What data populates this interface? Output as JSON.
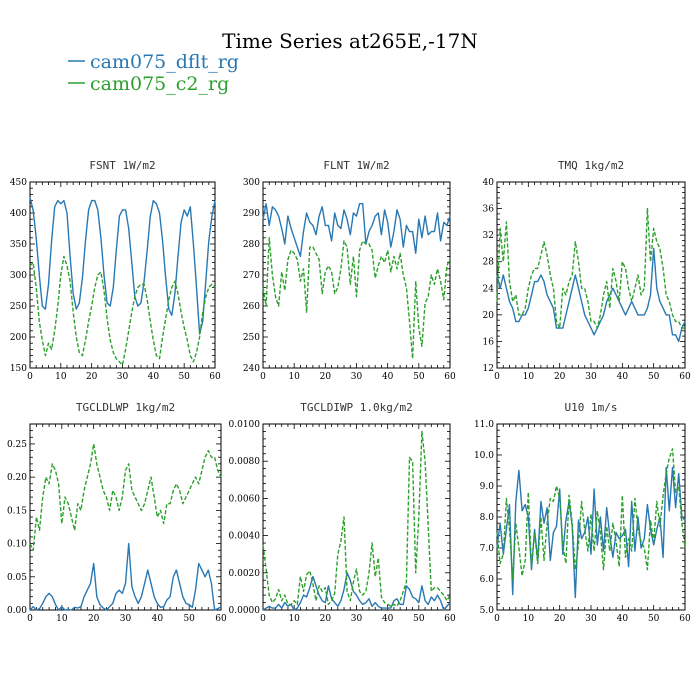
{
  "figure_title": "Time Series at265E,-17N",
  "legend": [
    {
      "label": "cam075_dflt_rg",
      "color": "#2878b4",
      "dash": "solid"
    },
    {
      "label": "cam075_c2_rg",
      "color": "#2ca02c",
      "dash": "dashed"
    }
  ],
  "chart_data": [
    {
      "type": "line",
      "title": "FSNT   1W/m2",
      "xlim": [
        0,
        60
      ],
      "ylim": [
        150,
        450
      ],
      "xticks": [
        0,
        10,
        20,
        30,
        40,
        50,
        60
      ],
      "yticks": [
        150,
        200,
        250,
        300,
        350,
        400,
        450
      ],
      "ytick_labels": [
        "150",
        "200",
        "250",
        "300",
        "350",
        "400",
        "450"
      ],
      "series": [
        {
          "name": "cam075_dflt_rg",
          "color": "#2878b4",
          "dash": "solid",
          "values": [
            425,
            405,
            360,
            300,
            250,
            245,
            285,
            355,
            410,
            420,
            415,
            420,
            400,
            330,
            270,
            245,
            255,
            295,
            355,
            405,
            420,
            420,
            405,
            360,
            300,
            255,
            250,
            280,
            340,
            395,
            405,
            405,
            375,
            320,
            265,
            250,
            255,
            290,
            340,
            395,
            420,
            415,
            400,
            355,
            295,
            245,
            235,
            270,
            330,
            385,
            405,
            395,
            410,
            350,
            280,
            205,
            225,
            290,
            355,
            395,
            420
          ]
        },
        {
          "name": "cam075_c2_rg",
          "color": "#2ca02c",
          "dash": "dashed",
          "values": [
            315,
            320,
            280,
            225,
            195,
            170,
            190,
            180,
            210,
            250,
            300,
            330,
            315,
            290,
            240,
            200,
            175,
            170,
            195,
            225,
            250,
            280,
            300,
            305,
            275,
            230,
            195,
            175,
            165,
            160,
            155,
            180,
            210,
            240,
            265,
            280,
            285,
            285,
            260,
            225,
            195,
            170,
            165,
            200,
            230,
            260,
            280,
            290,
            270,
            240,
            215,
            195,
            170,
            160,
            175,
            200,
            240,
            265,
            280,
            285,
            280
          ]
        }
      ]
    },
    {
      "type": "line",
      "title": "FLNT   1W/m2",
      "xlim": [
        0,
        60
      ],
      "ylim": [
        240,
        300
      ],
      "xticks": [
        0,
        10,
        20,
        30,
        40,
        50,
        60
      ],
      "yticks": [
        240,
        250,
        260,
        270,
        280,
        290,
        300
      ],
      "ytick_labels": [
        "240",
        "250",
        "260",
        "270",
        "280",
        "290",
        "300"
      ],
      "series": [
        {
          "name": "cam075_dflt_rg",
          "color": "#2878b4",
          "dash": "solid",
          "values": [
            288,
            293,
            286,
            292,
            291,
            289,
            285,
            280,
            289,
            285,
            282,
            279,
            276,
            284,
            290,
            287,
            286,
            283,
            289,
            292,
            286,
            286,
            281,
            290,
            286,
            285,
            291,
            288,
            283,
            290,
            289,
            293,
            293,
            280,
            284,
            286,
            289,
            290,
            283,
            291,
            287,
            279,
            284,
            291,
            288,
            279,
            286,
            284,
            284,
            277,
            288,
            282,
            289,
            283,
            284,
            284,
            290,
            281,
            287,
            286,
            289
          ]
        },
        {
          "name": "cam075_c2_rg",
          "color": "#2ca02c",
          "dash": "dashed",
          "values": [
            266,
            260,
            282,
            270,
            263,
            260,
            271,
            265,
            275,
            278,
            277,
            275,
            268,
            272,
            258,
            279,
            279,
            277,
            275,
            264,
            271,
            273,
            271,
            264,
            266,
            272,
            281,
            279,
            267,
            276,
            263,
            278,
            281,
            280,
            280,
            278,
            269,
            273,
            276,
            274,
            278,
            271,
            276,
            272,
            277,
            270,
            266,
            255,
            243,
            268,
            253,
            247,
            261,
            263,
            270,
            267,
            272,
            268,
            262,
            273,
            275
          ]
        }
      ]
    },
    {
      "type": "line",
      "title": "TMQ   1kg/m2",
      "xlim": [
        0,
        60
      ],
      "ylim": [
        12,
        40
      ],
      "xticks": [
        0,
        10,
        20,
        30,
        40,
        50,
        60
      ],
      "yticks": [
        12,
        16,
        20,
        24,
        28,
        32,
        36,
        40
      ],
      "ytick_labels": [
        "12",
        "16",
        "20",
        "24",
        "28",
        "32",
        "36",
        "40"
      ],
      "series": [
        {
          "name": "cam075_dflt_rg",
          "color": "#2878b4",
          "dash": "solid",
          "values": [
            26,
            24,
            26,
            24,
            22,
            21,
            19,
            19,
            20,
            20,
            21,
            23,
            25,
            25,
            26,
            25,
            23,
            22,
            21,
            18,
            18,
            18,
            20,
            22,
            24,
            26,
            24,
            22,
            20,
            19,
            18,
            17,
            18,
            19,
            20,
            22,
            23,
            24,
            23,
            22,
            21,
            20,
            21,
            22,
            21,
            20,
            20,
            20,
            21,
            23,
            30,
            24,
            22,
            21,
            20,
            20,
            17,
            17,
            16,
            18,
            19
          ]
        },
        {
          "name": "cam075_c2_rg",
          "color": "#2ca02c",
          "dash": "dashed",
          "values": [
            22,
            33,
            28,
            34,
            25,
            22,
            23,
            20,
            20,
            21,
            24,
            26,
            27,
            27,
            29,
            31,
            29,
            26,
            24,
            19,
            18,
            24,
            23,
            25,
            26,
            31,
            28,
            24,
            24,
            22,
            19,
            19,
            18,
            20,
            23,
            25,
            21,
            27,
            25,
            22,
            28,
            27,
            24,
            22,
            24,
            26,
            23,
            24,
            36,
            28,
            33,
            31,
            30,
            27,
            23,
            22,
            20,
            19,
            19,
            18,
            18
          ]
        }
      ]
    },
    {
      "type": "line",
      "title": "TGCLDLWP   1kg/m2",
      "xlim": [
        0,
        60
      ],
      "ylim": [
        0.0,
        0.28
      ],
      "xticks": [
        0,
        10,
        20,
        30,
        40,
        50,
        60
      ],
      "yticks": [
        0.0,
        0.05,
        0.1,
        0.15,
        0.2,
        0.25
      ],
      "ytick_labels": [
        "0.00",
        "0.05",
        "0.10",
        "0.15",
        "0.20",
        "0.25"
      ],
      "series": [
        {
          "name": "cam075_dflt_rg",
          "color": "#2878b4",
          "dash": "solid",
          "values": [
            0.0,
            0.005,
            0.0,
            0.002,
            0.01,
            0.02,
            0.025,
            0.02,
            0.008,
            0.0,
            0.005,
            0.0,
            0.001,
            0.0,
            0.004,
            0.003,
            0.005,
            0.02,
            0.03,
            0.04,
            0.07,
            0.02,
            0.008,
            0.003,
            0.0,
            0.005,
            0.01,
            0.025,
            0.03,
            0.025,
            0.04,
            0.1,
            0.035,
            0.02,
            0.01,
            0.02,
            0.04,
            0.06,
            0.04,
            0.02,
            0.01,
            0.004,
            0.005,
            0.015,
            0.02,
            0.05,
            0.06,
            0.04,
            0.02,
            0.01,
            0.008,
            0.004,
            0.03,
            0.07,
            0.06,
            0.05,
            0.06,
            0.04,
            0.0,
            0.002,
            0.005
          ]
        },
        {
          "name": "cam075_c2_rg",
          "color": "#2ca02c",
          "dash": "dashed",
          "values": [
            0.1,
            0.09,
            0.14,
            0.12,
            0.17,
            0.2,
            0.19,
            0.22,
            0.21,
            0.19,
            0.13,
            0.17,
            0.16,
            0.14,
            0.12,
            0.16,
            0.15,
            0.18,
            0.2,
            0.22,
            0.25,
            0.22,
            0.2,
            0.18,
            0.17,
            0.15,
            0.18,
            0.17,
            0.15,
            0.17,
            0.21,
            0.22,
            0.18,
            0.17,
            0.16,
            0.15,
            0.16,
            0.18,
            0.2,
            0.17,
            0.14,
            0.15,
            0.13,
            0.16,
            0.16,
            0.18,
            0.19,
            0.18,
            0.16,
            0.17,
            0.18,
            0.19,
            0.2,
            0.19,
            0.21,
            0.23,
            0.24,
            0.23,
            0.23,
            0.21,
            0.2
          ]
        }
      ]
    },
    {
      "type": "line",
      "title": "TGCLDIWP   1.0kg/m2",
      "xlim": [
        0,
        60
      ],
      "ylim": [
        0.0,
        0.01
      ],
      "xticks": [
        0,
        10,
        20,
        30,
        40,
        50,
        60
      ],
      "yticks": [
        0.0,
        0.002,
        0.004,
        0.006,
        0.008,
        0.01
      ],
      "ytick_labels": [
        "0.0000",
        "0.0020",
        "0.0040",
        "0.0060",
        "0.0080",
        "0.0100"
      ],
      "series": [
        {
          "name": "cam075_dflt_rg",
          "color": "#2878b4",
          "dash": "solid",
          "values": [
            0.0,
            0.0001,
            0.0002,
            0.0001,
            0.0001,
            0.0003,
            0.0001,
            0.0004,
            0.0002,
            0.0003,
            0.0,
            0.0001,
            0.0004,
            0.0008,
            0.0007,
            0.0012,
            0.0018,
            0.0013,
            0.0008,
            0.0005,
            0.0004,
            0.0013,
            0.0006,
            0.0004,
            0.0002,
            0.0005,
            0.0011,
            0.002,
            0.0016,
            0.001,
            0.0008,
            0.0005,
            0.0003,
            0.0004,
            0.0006,
            0.0002,
            0.0004,
            0.0002,
            0.0001,
            0.0001,
            0.0001,
            0.0001,
            0.0005,
            0.0006,
            0.0003,
            0.0003,
            0.0013,
            0.0011,
            0.0007,
            0.0006,
            0.0004,
            0.0013,
            0.0005,
            0.0003,
            0.0007,
            0.0005,
            0.0008,
            0.0005,
            0.0,
            0.0002,
            0.0004
          ]
        },
        {
          "name": "cam075_c2_rg",
          "color": "#2ca02c",
          "dash": "dashed",
          "values": [
            0.0035,
            0.0022,
            0.0008,
            0.0004,
            0.0006,
            0.0011,
            0.0005,
            0.0008,
            0.0003,
            0.0003,
            0.0005,
            0.0003,
            0.0018,
            0.001,
            0.0019,
            0.0021,
            0.0014,
            0.0005,
            0.0013,
            0.001,
            0.0012,
            0.0003,
            0.0005,
            0.0009,
            0.003,
            0.0037,
            0.005,
            0.001,
            0.0005,
            0.0015,
            0.0022,
            0.001,
            0.0008,
            0.001,
            0.002,
            0.0036,
            0.0018,
            0.0028,
            0.0007,
            0.0004,
            0.0003,
            0.0002,
            0.0003,
            0.0002,
            0.0005,
            0.001,
            0.0015,
            0.0082,
            0.008,
            0.002,
            0.005,
            0.0096,
            0.008,
            0.0045,
            0.001,
            0.0012,
            0.0012,
            0.001,
            0.0008,
            0.0005,
            0.0008
          ]
        }
      ]
    },
    {
      "type": "line",
      "title": "U10   1m/s",
      "xlim": [
        0,
        60
      ],
      "ylim": [
        5.0,
        11.0
      ],
      "xticks": [
        0,
        10,
        20,
        30,
        40,
        50,
        60
      ],
      "yticks": [
        5.0,
        6.0,
        7.0,
        8.0,
        9.0,
        10.0,
        11.0
      ],
      "ytick_labels": [
        "5.0",
        "6.0",
        "7.0",
        "8.0",
        "9.0",
        "10.0",
        "11.0"
      ],
      "series": [
        {
          "name": "cam075_dflt_rg",
          "color": "#2878b4",
          "dash": "solid",
          "values": [
            7.0,
            7.8,
            6.8,
            7.6,
            8.4,
            5.5,
            8.5,
            9.5,
            8.2,
            8.4,
            8.0,
            6.3,
            7.6,
            6.6,
            8.5,
            7.8,
            8.3,
            6.6,
            7.5,
            7.7,
            8.9,
            6.8,
            7.9,
            8.5,
            7.7,
            5.4,
            7.9,
            7.3,
            7.5,
            8.0,
            6.8,
            8.9,
            7.1,
            8.0,
            6.9,
            8.3,
            7.4,
            6.7,
            7.5,
            7.3,
            7.4,
            7.6,
            6.4,
            8.5,
            6.9,
            8.0,
            7.0,
            7.3,
            8.4,
            7.6,
            7.1,
            7.6,
            8.0,
            6.7,
            9.6,
            8.2,
            9.6,
            8.3,
            9.4,
            8.0,
            7.9
          ]
        },
        {
          "name": "cam075_c2_rg",
          "color": "#2ca02c",
          "dash": "dashed",
          "values": [
            7.5,
            6.5,
            6.8,
            8.6,
            7.6,
            6.0,
            7.8,
            7.0,
            6.1,
            6.6,
            8.8,
            6.4,
            7.5,
            6.5,
            8.0,
            6.6,
            7.8,
            8.6,
            8.5,
            9.0,
            8.6,
            7.1,
            6.5,
            8.7,
            7.8,
            6.3,
            7.1,
            8.5,
            7.6,
            6.9,
            8.1,
            6.9,
            8.2,
            7.5,
            6.3,
            7.7,
            6.9,
            7.8,
            7.2,
            6.4,
            8.7,
            6.7,
            7.3,
            6.9,
            8.6,
            7.6,
            7.2,
            7.0,
            6.3,
            7.9,
            7.2,
            8.5,
            7.7,
            8.7,
            9.4,
            9.9,
            10.2,
            8.8,
            9.0,
            7.8,
            7.0
          ]
        }
      ]
    }
  ]
}
